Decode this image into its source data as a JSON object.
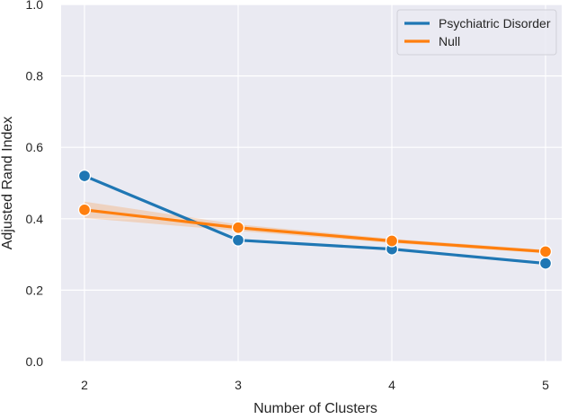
{
  "chart_data": {
    "type": "line",
    "title": "",
    "xlabel": "Number of Clusters",
    "ylabel": "Adjusted Rand Index",
    "x": [
      2,
      3,
      4,
      5
    ],
    "xticks": [
      "2",
      "3",
      "4",
      "5"
    ],
    "xlim": [
      2,
      5
    ],
    "ylim": [
      0.0,
      1.0
    ],
    "yticks": [
      "0.0",
      "0.2",
      "0.4",
      "0.6",
      "0.8",
      "1.0"
    ],
    "grid": true,
    "legend_position": "top-right",
    "series": [
      {
        "name": "Psychiatric Disorder",
        "color": "#1f77b4",
        "values": [
          0.52,
          0.34,
          0.315,
          0.275
        ]
      },
      {
        "name": "Null",
        "color": "#ff7f0e",
        "values": [
          0.425,
          0.375,
          0.338,
          0.308
        ],
        "ci_lower": [
          0.402,
          0.366,
          0.332,
          0.303
        ],
        "ci_upper": [
          0.448,
          0.384,
          0.344,
          0.313
        ]
      }
    ],
    "background_color": "#eaeaf2",
    "grid_color": "#ffffff"
  }
}
